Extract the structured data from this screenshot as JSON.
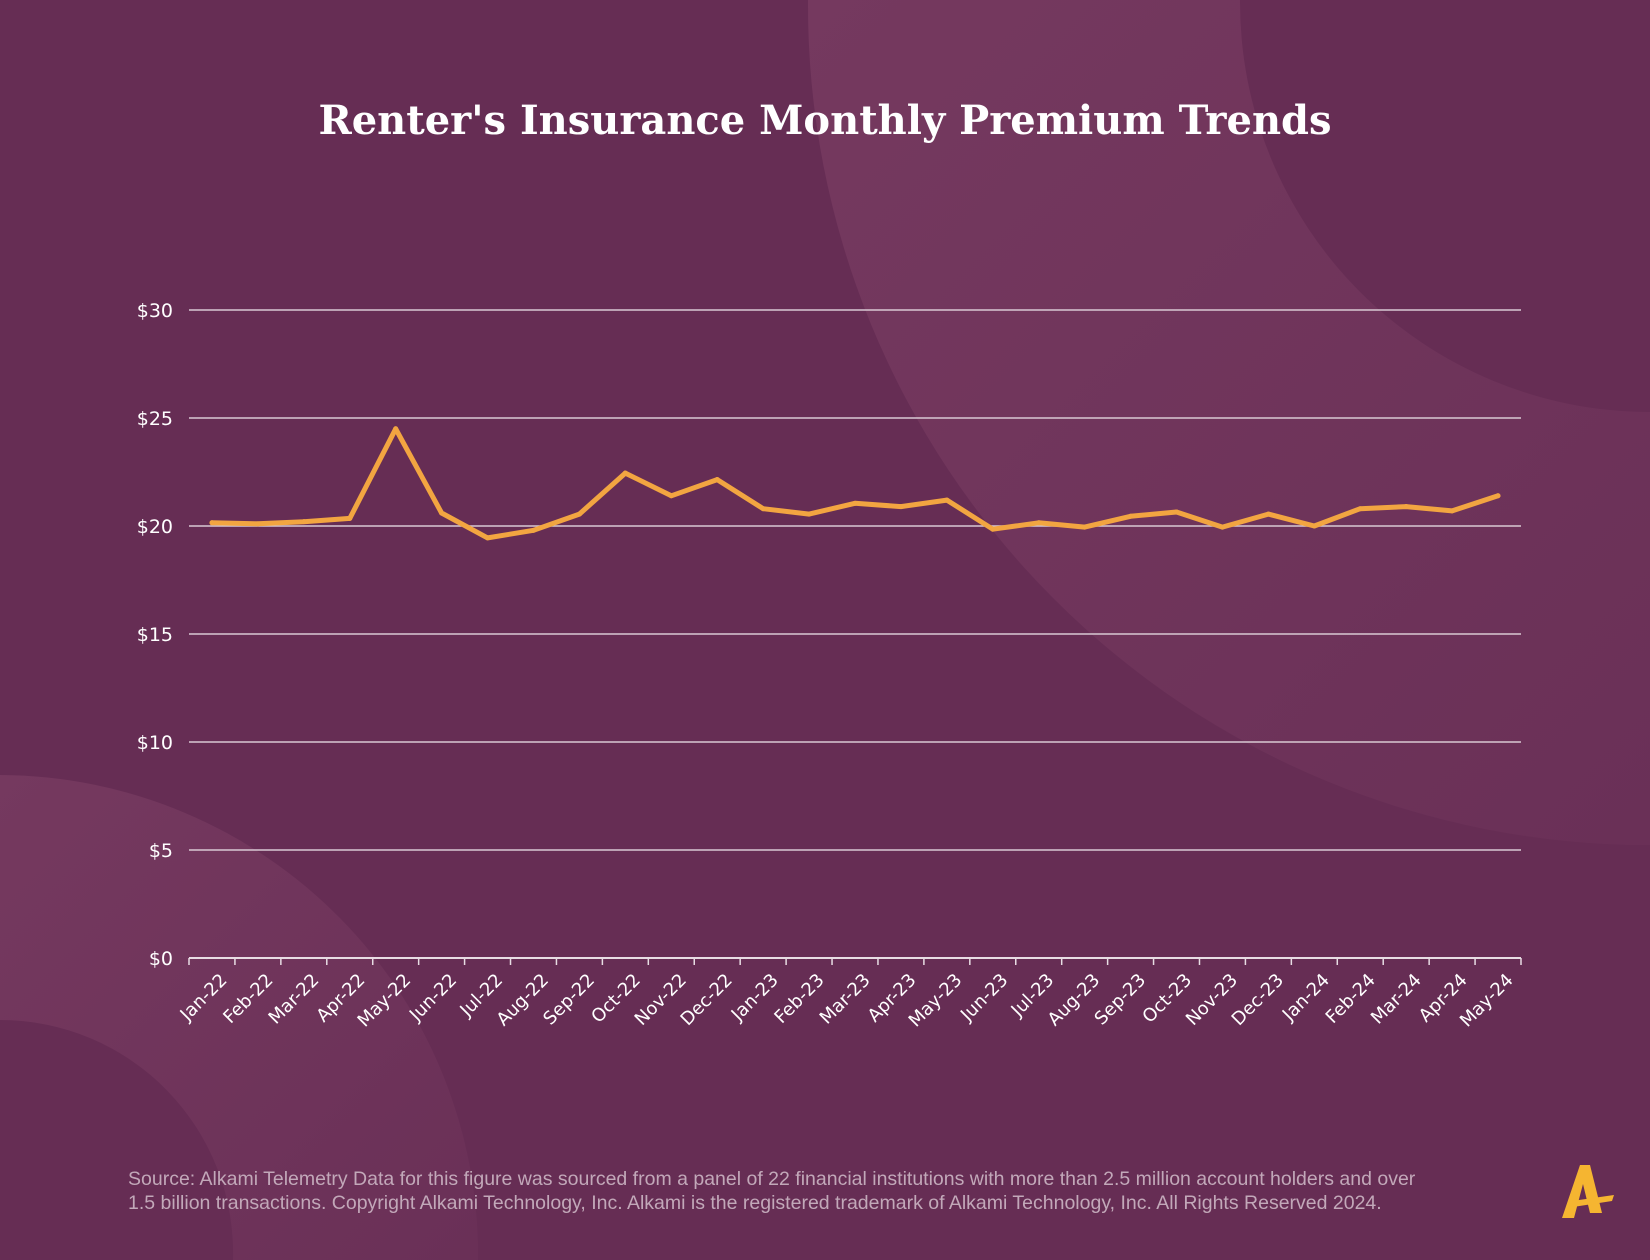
{
  "colors": {
    "background": "#662d54",
    "background_shape": "#74385f",
    "line": "#f2a541",
    "text": "#ffffff",
    "source_text": "#c2a8b9",
    "logo": "#f5b531"
  },
  "logo": {
    "icon": "alkami-logo-icon"
  },
  "footer": {
    "source_line_1": "Source:  Alkami Telemetry Data for this figure was sourced from a panel of 22 financial institutions with more than 2.5 million account holders and over",
    "source_line_2": "1.5 billion transactions. Copyright Alkami Technology, Inc. Alkami is the registered trademark of Alkami Technology, Inc. All Rights Reserved 2024."
  },
  "chart_data": {
    "type": "line",
    "title": "Renter's Insurance Monthly Premium Trends",
    "xlabel": "",
    "ylabel": "",
    "ylim": [
      0,
      30
    ],
    "yticks": [
      0,
      5,
      10,
      15,
      20,
      25,
      30
    ],
    "ytick_labels": [
      "$0",
      "$5",
      "$10",
      "$15",
      "$20",
      "$25",
      "$30"
    ],
    "grid": true,
    "legend": "none",
    "categories": [
      "Jan-22",
      "Feb-22",
      "Mar-22",
      "Apr-22",
      "May-22",
      "Jun-22",
      "Jul-22",
      "Aug-22",
      "Sep-22",
      "Oct-22",
      "Nov-22",
      "Dec-22",
      "Jan-23",
      "Feb-23",
      "Mar-23",
      "Apr-23",
      "May-23",
      "Jun-23",
      "Jul-23",
      "Aug-23",
      "Sep-23",
      "Oct-23",
      "Nov-23",
      "Dec-23",
      "Jan-24",
      "Feb-24",
      "Mar-24",
      "Apr-24",
      "May-24"
    ],
    "series": [
      {
        "values": [
          20.15,
          20.1,
          20.2,
          20.35,
          24.5,
          20.6,
          19.45,
          19.8,
          20.55,
          22.45,
          21.4,
          22.15,
          20.8,
          20.55,
          21.05,
          20.9,
          21.2,
          19.85,
          20.15,
          19.95,
          20.45,
          20.65,
          19.95,
          20.55,
          20.0,
          20.8,
          20.9,
          20.7,
          21.4
        ]
      }
    ]
  }
}
